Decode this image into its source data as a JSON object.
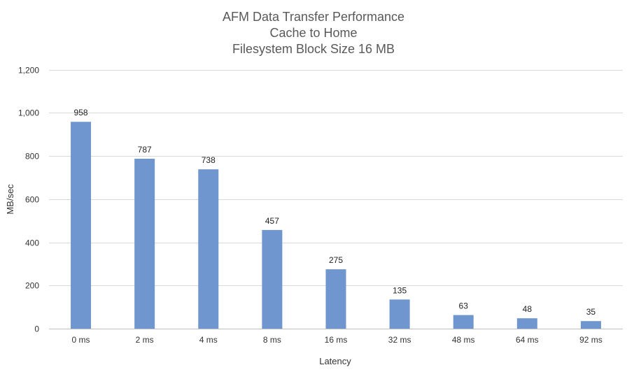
{
  "chart_data": {
    "type": "bar",
    "title": [
      "AFM Data Transfer Performance",
      "Cache to Home",
      "Filesystem Block Size 16 MB"
    ],
    "xlabel": "Latency",
    "ylabel": "MB/sec",
    "categories": [
      "0 ms",
      "2 ms",
      "4 ms",
      "8 ms",
      "16 ms",
      "32 ms",
      "48 ms",
      "64 ms",
      "92 ms"
    ],
    "values": [
      958,
      787,
      738,
      457,
      275,
      135,
      63,
      48,
      35
    ],
    "data_labels": [
      "958",
      "787",
      "738",
      "457",
      "275",
      "135",
      "63",
      "48",
      "35"
    ],
    "ylim": [
      0,
      1200
    ],
    "yticks": [
      0,
      200,
      400,
      600,
      800,
      1000,
      1200
    ],
    "ytick_labels": [
      "0",
      "200",
      "400",
      "600",
      "800",
      "1,000",
      "1,200"
    ],
    "grid": true,
    "legend": "none",
    "bar_color": "#6f96cf"
  }
}
